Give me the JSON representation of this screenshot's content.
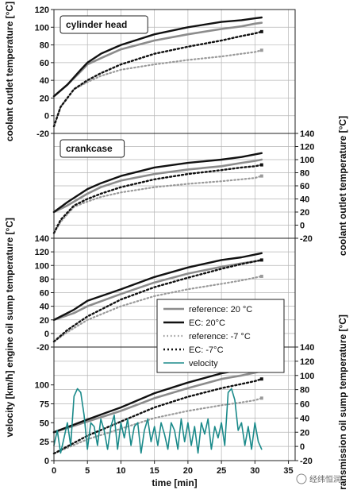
{
  "chart_data": {
    "type": "line",
    "xlabel": "time [min]",
    "x_ticks": [
      "0",
      "5",
      "10",
      "15",
      "20",
      "25",
      "30",
      "35"
    ],
    "xlim": [
      0,
      36
    ],
    "grid": true,
    "legend": {
      "placement": "panel-3-right",
      "entries": [
        {
          "label": "reference: 20 °C",
          "color": "#888888",
          "style": "solid"
        },
        {
          "label": "EC: 20°C",
          "color": "#111111",
          "style": "solid"
        },
        {
          "label": "reference: -7 °C",
          "color": "#999999",
          "style": "dotted"
        },
        {
          "label": "EC: -7°C",
          "color": "#111111",
          "style": "dotted"
        },
        {
          "label": "velocity",
          "color": "#1a8a8a",
          "style": "solid"
        }
      ]
    },
    "panels": [
      {
        "label": "cylinder head",
        "ylabel_left": "coolant outlet temperature [°C]",
        "left_ticks": [
          "-20",
          "0",
          "20",
          "40",
          "60",
          "80",
          "100",
          "120"
        ],
        "right_ticks": [],
        "ylim": [
          -20,
          120
        ],
        "series": [
          {
            "name": "reference: 20 °C",
            "x": [
              0,
              2,
              4,
              5,
              7,
              10,
              15,
              20,
              25,
              28,
              30,
              31
            ],
            "y": [
              22,
              35,
              50,
              58,
              65,
              75,
              85,
              92,
              98,
              101,
              104,
              105
            ]
          },
          {
            "name": "EC: 20°C",
            "x": [
              0,
              2,
              4,
              5,
              7,
              10,
              15,
              20,
              25,
              28,
              30,
              31
            ],
            "y": [
              22,
              35,
              52,
              60,
              70,
              80,
              92,
              100,
              106,
              108,
              110,
              111
            ]
          },
          {
            "name": "reference: -7 °C",
            "x": [
              0,
              1,
              3,
              5,
              7,
              10,
              15,
              20,
              25,
              28,
              30,
              31
            ],
            "y": [
              -12,
              10,
              30,
              38,
              45,
              52,
              58,
              63,
              67,
              70,
              72,
              74
            ]
          },
          {
            "name": "EC: -7°C",
            "x": [
              0,
              1,
              3,
              5,
              7,
              10,
              15,
              20,
              25,
              28,
              30,
              31
            ],
            "y": [
              -12,
              10,
              30,
              40,
              48,
              58,
              70,
              78,
              85,
              90,
              93,
              95
            ]
          }
        ]
      },
      {
        "label": "crankcase",
        "ylabel_left": "",
        "left_ticks": [],
        "right_ticks": [
          "-20",
          "0",
          "20",
          "40",
          "60",
          "80",
          "100",
          "120",
          "140"
        ],
        "ylabel_right": "coolant outlet temperature [°C]",
        "ylim": [
          -20,
          140
        ],
        "series": [
          {
            "name": "reference: 20 °C",
            "x": [
              0,
              2,
              5,
              7,
              10,
              15,
              20,
              25,
              28,
              30,
              31
            ],
            "y": [
              20,
              30,
              48,
              58,
              68,
              78,
              85,
              90,
              95,
              98,
              100
            ]
          },
          {
            "name": "EC: 20°C",
            "x": [
              0,
              2,
              5,
              7,
              10,
              15,
              20,
              25,
              28,
              30,
              31
            ],
            "y": [
              20,
              35,
              55,
              64,
              75,
              88,
              95,
              100,
              104,
              108,
              110
            ]
          },
          {
            "name": "reference: -7 °C",
            "x": [
              0,
              1,
              3,
              5,
              7,
              10,
              15,
              20,
              25,
              28,
              30,
              31
            ],
            "y": [
              -12,
              5,
              28,
              36,
              43,
              50,
              58,
              63,
              67,
              70,
              72,
              75
            ]
          },
          {
            "name": "EC: -7°C",
            "x": [
              0,
              1,
              3,
              5,
              7,
              10,
              15,
              20,
              25,
              28,
              30,
              31
            ],
            "y": [
              -12,
              8,
              30,
              40,
              48,
              58,
              70,
              78,
              84,
              88,
              90,
              92
            ]
          }
        ]
      },
      {
        "label": "",
        "ylabel_left": "engine oil sump temperature [°C]",
        "left_ticks": [
          "-20",
          "0",
          "20",
          "40",
          "60",
          "80",
          "100",
          "120",
          "140"
        ],
        "right_ticks": [],
        "ylim": [
          -20,
          140
        ],
        "series": [
          {
            "name": "reference: 20 °C",
            "x": [
              0,
              3,
              5,
              10,
              15,
              20,
              25,
              28,
              30,
              31
            ],
            "y": [
              20,
              30,
              40,
              58,
              75,
              88,
              98,
              103,
              106,
              108
            ]
          },
          {
            "name": "EC: 20°C",
            "x": [
              0,
              3,
              5,
              10,
              15,
              20,
              25,
              28,
              30,
              31
            ],
            "y": [
              20,
              35,
              48,
              65,
              83,
              97,
              108,
              112,
              116,
              118
            ]
          },
          {
            "name": "reference: -7 °C",
            "x": [
              0,
              2,
              5,
              10,
              15,
              20,
              25,
              28,
              30,
              31
            ],
            "y": [
              -12,
              2,
              20,
              40,
              55,
              65,
              73,
              78,
              82,
              84
            ]
          },
          {
            "name": "EC: -7°C",
            "x": [
              0,
              2,
              5,
              10,
              15,
              20,
              25,
              28,
              30,
              31
            ],
            "y": [
              -12,
              5,
              25,
              50,
              68,
              82,
              95,
              102,
              106,
              108
            ]
          }
        ]
      },
      {
        "label": "",
        "ylabel_left": "velocity [km/h]",
        "left_ticks": [
          "0",
          "25",
          "50",
          "75",
          "100"
        ],
        "left_ylim": [
          0,
          150
        ],
        "right_ticks": [
          "-20",
          "0",
          "20",
          "40",
          "60",
          "80",
          "100",
          "120",
          "140"
        ],
        "ylabel_right": "transmission oil sump temperature [°C]",
        "ylim": [
          -20,
          140
        ],
        "series": [
          {
            "name": "reference: 20 °C",
            "x": [
              0,
              5,
              10,
              15,
              20,
              25,
              28,
              30,
              31
            ],
            "y": [
              20,
              35,
              50,
              68,
              82,
              95,
              100,
              104,
              106
            ]
          },
          {
            "name": "EC: 20°C",
            "x": [
              0,
              5,
              10,
              15,
              20,
              25,
              28,
              30,
              31
            ],
            "y": [
              20,
              38,
              55,
              75,
              90,
              103,
              108,
              112,
              114
            ]
          },
          {
            "name": "reference: -7 °C",
            "x": [
              0,
              3,
              5,
              10,
              15,
              20,
              25,
              28,
              30,
              31
            ],
            "y": [
              -10,
              2,
              10,
              25,
              40,
              50,
              58,
              62,
              65,
              68
            ]
          },
          {
            "name": "EC: -7°C",
            "x": [
              0,
              3,
              5,
              10,
              15,
              20,
              25,
              28,
              30,
              31
            ],
            "y": [
              -10,
              5,
              15,
              35,
              55,
              70,
              82,
              88,
              92,
              95
            ]
          },
          {
            "name": "velocity",
            "axis": "left",
            "x": [
              0,
              0.5,
              1,
              1.5,
              2,
              2.5,
              3,
              3.5,
              4,
              4.5,
              5,
              5.5,
              6,
              6.5,
              7,
              7.5,
              8,
              8.5,
              9,
              9.5,
              10,
              10.5,
              11,
              11.5,
              12,
              12.5,
              13,
              13.5,
              14,
              14.5,
              15,
              15.5,
              16,
              16.5,
              17,
              17.5,
              18,
              18.5,
              19,
              19.5,
              20,
              20.5,
              21,
              21.5,
              22,
              22.5,
              23,
              23.5,
              24,
              24.5,
              25,
              25.5,
              26,
              26.5,
              27,
              27.5,
              28,
              28.5,
              29,
              29.5,
              30,
              30.5,
              31
            ],
            "y": [
              20,
              40,
              10,
              30,
              50,
              20,
              85,
              95,
              90,
              60,
              15,
              50,
              45,
              20,
              55,
              40,
              15,
              45,
              60,
              15,
              50,
              30,
              55,
              20,
              45,
              50,
              10,
              40,
              55,
              25,
              45,
              20,
              50,
              35,
              15,
              50,
              40,
              15,
              55,
              25,
              50,
              20,
              45,
              10,
              50,
              35,
              55,
              15,
              45,
              30,
              50,
              20,
              90,
              95,
              80,
              40,
              50,
              20,
              45,
              15,
              50,
              25,
              15
            ]
          }
        ]
      }
    ]
  },
  "watermark": {
    "text": "经纬恒润"
  }
}
